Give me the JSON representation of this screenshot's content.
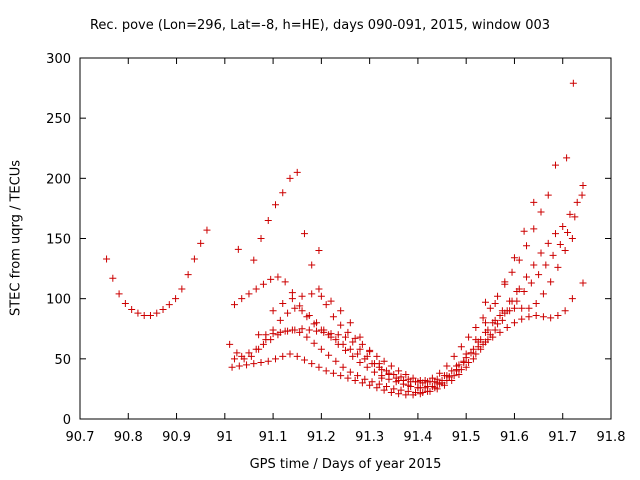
{
  "chart_data": {
    "type": "scatter",
    "title": "Rec. pove (Lon=296, Lat=-8, h=HE), days 090-091, 2015, window 003",
    "xlabel": "GPS time / Days of year 2015",
    "ylabel": "STEC from uqrg / TECUs",
    "xlim": [
      90.7,
      91.8
    ],
    "ylim": [
      0,
      300
    ],
    "xticks": [
      "90.7",
      "90.8",
      "90.9",
      "91",
      "91.1",
      "91.2",
      "91.3",
      "91.4",
      "91.5",
      "91.6",
      "91.7",
      "91.8"
    ],
    "yticks": [
      "0",
      "50",
      "100",
      "150",
      "200",
      "250",
      "300"
    ],
    "grid": false,
    "marker": "+",
    "color": "#cc0000",
    "series": [
      {
        "x": [
          90.755,
          90.768,
          90.781,
          90.794,
          90.807,
          90.82,
          90.833,
          90.846,
          90.859,
          90.872,
          90.885,
          90.898,
          90.911,
          90.924,
          90.937,
          90.95,
          90.963
        ],
        "y": [
          133,
          117,
          104,
          96,
          91,
          88,
          86,
          86,
          88,
          91,
          95,
          100,
          108,
          120,
          133,
          146,
          157
        ]
      },
      {
        "x": [
          91.015,
          91.03,
          91.045,
          91.06,
          91.075,
          91.09,
          91.105,
          91.12,
          91.135,
          91.15,
          91.165,
          91.18,
          91.195,
          91.21,
          91.225,
          91.24,
          91.255,
          91.27,
          91.285,
          91.3,
          91.315,
          91.33,
          91.345,
          91.36,
          91.375,
          91.39,
          91.405,
          91.42,
          91.435,
          91.45,
          91.465,
          91.48,
          91.495,
          91.51,
          91.525,
          91.54,
          91.555,
          91.57,
          91.585,
          91.6,
          91.615,
          91.63,
          91.645,
          91.66,
          91.675,
          91.69,
          91.705,
          91.72
        ],
        "y": [
          43,
          44,
          45,
          46,
          47,
          48,
          50,
          52,
          54,
          52,
          49,
          46,
          43,
          40,
          38,
          36,
          34,
          32,
          30,
          28,
          26,
          24,
          22,
          21,
          20,
          20,
          21,
          23,
          26,
          30,
          35,
          41,
          48,
          55,
          60,
          64,
          68,
          72,
          76,
          80,
          83,
          85,
          86,
          85,
          84,
          86,
          90,
          100
        ]
      },
      {
        "x": [
          91.02,
          91.035,
          91.05,
          91.065,
          91.08,
          91.095,
          91.11,
          91.125,
          91.14,
          91.155,
          91.17,
          91.185,
          91.2,
          91.215,
          91.23,
          91.245,
          91.26,
          91.275,
          91.29,
          91.305,
          91.32,
          91.335,
          91.35,
          91.365,
          91.38,
          91.395,
          91.41,
          91.425,
          91.44,
          91.455,
          91.47,
          91.485,
          91.5,
          91.515,
          91.53,
          91.545,
          91.56,
          91.575,
          91.59,
          91.605,
          91.62,
          91.635,
          91.65,
          91.665,
          91.68,
          91.695,
          91.71,
          91.725,
          91.74
        ],
        "y": [
          50,
          52,
          55,
          58,
          62,
          66,
          70,
          73,
          74,
          72,
          68,
          63,
          58,
          53,
          48,
          43,
          39,
          36,
          33,
          31,
          29,
          27,
          25,
          24,
          23,
          22,
          22,
          23,
          25,
          28,
          32,
          37,
          43,
          50,
          58,
          66,
          74,
          82,
          90,
          98,
          106,
          113,
          120,
          128,
          136,
          145,
          155,
          168,
          186
        ]
      },
      {
        "x": [
          91.01,
          91.025,
          91.04,
          91.055,
          91.07,
          91.085,
          91.1,
          91.115,
          91.13,
          91.145,
          91.16,
          91.175,
          91.19,
          91.205,
          91.22,
          91.235,
          91.25,
          91.265,
          91.28,
          91.295,
          91.31,
          91.325,
          91.34,
          91.355,
          91.37,
          91.385,
          91.4,
          91.415,
          91.43,
          91.445,
          91.46,
          91.475,
          91.49,
          91.505,
          91.52,
          91.535,
          91.55,
          91.565,
          91.58,
          91.595,
          91.61,
          91.625,
          91.64,
          91.655,
          91.67,
          91.685,
          91.7,
          91.715,
          91.73,
          91.742
        ],
        "y": [
          62,
          55,
          50,
          52,
          58,
          66,
          74,
          82,
          88,
          92,
          90,
          86,
          80,
          74,
          68,
          62,
          57,
          52,
          47,
          43,
          39,
          36,
          33,
          31,
          29,
          27,
          26,
          26,
          27,
          29,
          32,
          36,
          41,
          47,
          54,
          62,
          70,
          79,
          88,
          98,
          108,
          118,
          128,
          138,
          146,
          154,
          160,
          170,
          180,
          194
        ]
      },
      {
        "x": [
          91.02,
          91.035,
          91.05,
          91.065,
          91.08,
          91.095,
          91.11,
          91.125,
          91.14,
          91.155,
          91.17,
          91.185,
          91.2,
          91.215,
          91.23,
          91.245,
          91.26,
          91.275,
          91.29,
          91.305,
          91.32,
          91.335,
          91.35,
          91.365,
          91.38,
          91.395,
          91.41,
          91.425,
          91.44,
          91.455,
          91.47,
          91.485,
          91.5,
          91.515,
          91.53,
          91.545,
          91.56,
          91.575,
          91.59,
          91.605
        ],
        "y": [
          95,
          100,
          104,
          108,
          112,
          116,
          118,
          114,
          105,
          94,
          85,
          79,
          74,
          70,
          66,
          62,
          58,
          54,
          50,
          46,
          43,
          40,
          37,
          35,
          33,
          31,
          30,
          31,
          33,
          36,
          40,
          45,
          51,
          58,
          66,
          74,
          82,
          90,
          98,
          106
        ]
      },
      {
        "x": [
          91.06,
          91.075,
          91.09,
          91.105,
          91.12,
          91.135,
          91.15,
          91.165,
          91.18,
          91.195,
          91.21,
          91.225,
          91.24,
          91.255,
          91.27,
          91.285,
          91.3,
          91.315,
          91.33,
          91.345,
          91.36,
          91.375,
          91.39,
          91.405,
          91.42,
          91.435,
          91.45,
          91.465,
          91.48,
          91.495,
          91.51,
          91.525,
          91.54,
          91.555,
          91.57,
          91.585,
          91.6,
          91.615,
          91.63,
          91.645,
          91.66,
          91.675,
          91.69,
          91.705,
          91.72
        ],
        "y": [
          132,
          150,
          165,
          178,
          188,
          200,
          205,
          154,
          128,
          108,
          95,
          85,
          78,
          72,
          67,
          62,
          57,
          52,
          48,
          44,
          40,
          37,
          34,
          32,
          31,
          31,
          32,
          35,
          40,
          47,
          55,
          64,
          72,
          80,
          86,
          90,
          92,
          92,
          92,
          96,
          104,
          114,
          126,
          140,
          150
        ]
      },
      {
        "x": [
          91.07,
          91.085,
          91.1,
          91.115,
          91.13,
          91.145,
          91.16,
          91.175,
          91.19,
          91.205,
          91.22,
          91.235,
          91.25,
          91.265,
          91.28,
          91.295,
          91.31,
          91.325,
          91.34,
          91.355,
          91.37,
          91.385,
          91.4,
          91.415,
          91.43,
          91.445,
          91.46,
          91.475,
          91.49,
          91.505,
          91.52,
          91.535,
          91.55,
          91.565,
          91.58,
          91.595,
          91.61,
          91.625,
          91.64,
          91.655,
          91.67,
          91.685
        ],
        "y": [
          70,
          70,
          71,
          72,
          73,
          74,
          75,
          74,
          73,
          72,
          71,
          70,
          68,
          64,
          58,
          52,
          46,
          41,
          37,
          34,
          32,
          31,
          31,
          32,
          34,
          38,
          44,
          52,
          60,
          68,
          76,
          84,
          92,
          102,
          112,
          122,
          132,
          144,
          158,
          172,
          186,
          211
        ]
      },
      {
        "x": [
          91.1,
          91.12,
          91.14,
          91.16,
          91.18,
          91.2,
          91.22,
          91.24,
          91.26,
          91.28,
          91.3,
          91.32,
          91.34,
          91.36,
          91.38,
          91.4,
          91.42,
          91.44,
          91.46,
          91.48,
          91.5,
          91.52,
          91.54,
          91.56,
          91.58,
          91.6,
          91.62,
          91.64
        ],
        "y": [
          90,
          96,
          100,
          102,
          104,
          102,
          98,
          90,
          80,
          68,
          56,
          46,
          38,
          32,
          28,
          26,
          27,
          30,
          36,
          44,
          54,
          66,
          80,
          96,
          114,
          134,
          156,
          180
        ]
      },
      {
        "x": [
          91.028,
          91.195,
          91.325,
          91.405,
          91.54,
          91.708,
          91.722,
          91.742
        ],
        "y": [
          141,
          140,
          34,
          26,
          97,
          217,
          279,
          113
        ]
      }
    ]
  }
}
